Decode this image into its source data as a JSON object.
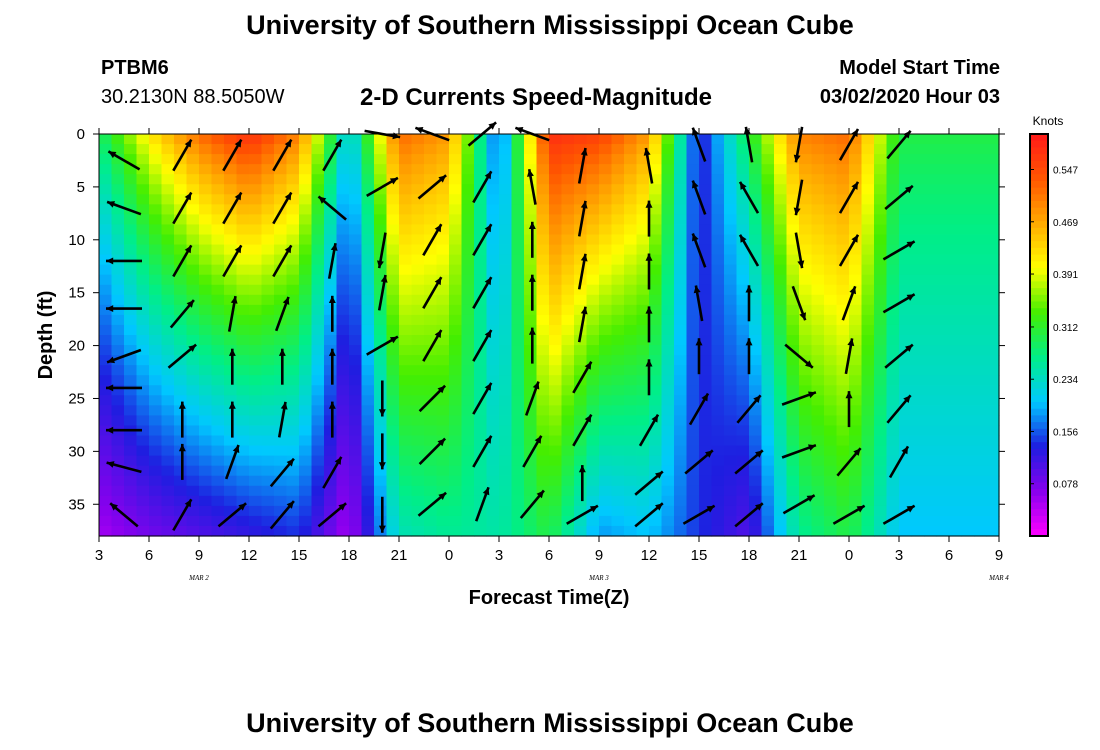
{
  "header": {
    "title": "University of Southern Mississippi Ocean Cube",
    "station_id": "PTBM6",
    "station_coords": "30.2130N 88.5050W",
    "chart_title": "2-D Currents Speed-Magnitude",
    "start_label": "Model Start Time",
    "start_value": "03/02/2020 Hour 03"
  },
  "footer": {
    "title": "University of Southern Mississippi Ocean Cube"
  },
  "colors": {
    "scale": [
      "#ff00ff",
      "#8800ee",
      "#1e1ee0",
      "#00c8ff",
      "#00ee88",
      "#44ee00",
      "#ffff00",
      "#ffaa00",
      "#ff5500",
      "#ff1a1a"
    ],
    "arrow": "#000000",
    "axis": "#000000"
  },
  "chart_data": {
    "type": "heatmap",
    "title": "2-D Currents Speed-Magnitude",
    "xlabel": "Forecast Time(Z)",
    "ylabel": "Depth (ft)",
    "x_tick_labels": [
      "3",
      "6",
      "9",
      "12",
      "15",
      "18",
      "21",
      "0",
      "3",
      "6",
      "9",
      "12",
      "15",
      "18",
      "21",
      "0",
      "3",
      "6",
      "9"
    ],
    "x_range_hours": [
      0,
      54
    ],
    "date_labels": [
      {
        "label": "MAR 2",
        "hour": 9
      },
      {
        "label": "MAR 3",
        "hour": 33
      },
      {
        "label": "MAR 4",
        "hour": 57
      }
    ],
    "y_ticks": [
      0,
      5,
      10,
      15,
      20,
      25,
      30,
      35
    ],
    "y_range": [
      0,
      38
    ],
    "y_inverted": true,
    "colorbar": {
      "title": "Knots",
      "labels": [
        "0.547",
        "0.469",
        "0.391",
        "0.312",
        "0.234",
        "0.156",
        "0.078"
      ],
      "range": [
        0,
        0.6
      ]
    },
    "speed_bands": [
      {
        "hour": 0,
        "surface": 0.28,
        "bottom": 0.05
      },
      {
        "hour": 3,
        "surface": 0.42,
        "bottom": 0.08
      },
      {
        "hour": 6,
        "surface": 0.52,
        "bottom": 0.1
      },
      {
        "hour": 9,
        "surface": 0.58,
        "bottom": 0.12
      },
      {
        "hour": 12,
        "surface": 0.5,
        "bottom": 0.14
      },
      {
        "hour": 15,
        "surface": 0.2,
        "bottom": 0.05
      },
      {
        "hour": 18,
        "surface": 0.52,
        "bottom": 0.24
      },
      {
        "hour": 21,
        "surface": 0.48,
        "bottom": 0.26
      },
      {
        "hour": 24,
        "surface": 0.14,
        "bottom": 0.25
      },
      {
        "hour": 27,
        "surface": 0.58,
        "bottom": 0.3
      },
      {
        "hour": 30,
        "surface": 0.56,
        "bottom": 0.18
      },
      {
        "hour": 33,
        "surface": 0.48,
        "bottom": 0.2
      },
      {
        "hour": 36,
        "surface": 0.12,
        "bottom": 0.14
      },
      {
        "hour": 39,
        "surface": 0.3,
        "bottom": 0.1
      },
      {
        "hour": 42,
        "surface": 0.5,
        "bottom": 0.26
      },
      {
        "hour": 45,
        "surface": 0.52,
        "bottom": 0.3
      },
      {
        "hour": 48,
        "surface": 0.3,
        "bottom": 0.2
      }
    ],
    "vectors": [
      {
        "hour": 1.5,
        "depth": 2.5,
        "angle": -150
      },
      {
        "hour": 1.5,
        "depth": 7,
        "angle": -160
      },
      {
        "hour": 1.5,
        "depth": 12,
        "angle": 180
      },
      {
        "hour": 1.5,
        "depth": 16.5,
        "angle": 180
      },
      {
        "hour": 1.5,
        "depth": 21,
        "angle": 160
      },
      {
        "hour": 1.5,
        "depth": 24,
        "angle": 180
      },
      {
        "hour": 1.5,
        "depth": 28,
        "angle": 180
      },
      {
        "hour": 1.5,
        "depth": 31.5,
        "angle": -165
      },
      {
        "hour": 1.5,
        "depth": 36,
        "angle": -140
      },
      {
        "hour": 5,
        "depth": 2,
        "angle": -60
      },
      {
        "hour": 5,
        "depth": 7,
        "angle": -60
      },
      {
        "hour": 5,
        "depth": 12,
        "angle": -60
      },
      {
        "hour": 5,
        "depth": 17,
        "angle": -50
      },
      {
        "hour": 5,
        "depth": 21,
        "angle": -40
      },
      {
        "hour": 5,
        "depth": 27,
        "angle": -90
      },
      {
        "hour": 5,
        "depth": 31,
        "angle": -90
      },
      {
        "hour": 5,
        "depth": 36,
        "angle": -60
      },
      {
        "hour": 8,
        "depth": 2,
        "angle": -60
      },
      {
        "hour": 8,
        "depth": 7,
        "angle": -60
      },
      {
        "hour": 8,
        "depth": 12,
        "angle": -60
      },
      {
        "hour": 8,
        "depth": 17,
        "angle": -80
      },
      {
        "hour": 8,
        "depth": 22,
        "angle": -90
      },
      {
        "hour": 8,
        "depth": 27,
        "angle": -90
      },
      {
        "hour": 8,
        "depth": 31,
        "angle": -70
      },
      {
        "hour": 8,
        "depth": 36,
        "angle": -40
      },
      {
        "hour": 11,
        "depth": 2,
        "angle": -60
      },
      {
        "hour": 11,
        "depth": 7,
        "angle": -60
      },
      {
        "hour": 11,
        "depth": 12,
        "angle": -60
      },
      {
        "hour": 11,
        "depth": 17,
        "angle": -70
      },
      {
        "hour": 11,
        "depth": 22,
        "angle": -90
      },
      {
        "hour": 11,
        "depth": 27,
        "angle": -80
      },
      {
        "hour": 11,
        "depth": 32,
        "angle": -50
      },
      {
        "hour": 11,
        "depth": 36,
        "angle": -50
      },
      {
        "hour": 14,
        "depth": 2,
        "angle": -60
      },
      {
        "hour": 14,
        "depth": 7,
        "angle": -140
      },
      {
        "hour": 14,
        "depth": 12,
        "angle": -80
      },
      {
        "hour": 14,
        "depth": 17,
        "angle": -90
      },
      {
        "hour": 14,
        "depth": 22,
        "angle": -90
      },
      {
        "hour": 14,
        "depth": 27,
        "angle": -90
      },
      {
        "hour": 14,
        "depth": 32,
        "angle": -60
      },
      {
        "hour": 14,
        "depth": 36,
        "angle": -40
      },
      {
        "hour": 17,
        "depth": 0,
        "angle": 10
      },
      {
        "hour": 17,
        "depth": 5,
        "angle": -30
      },
      {
        "hour": 17,
        "depth": 11,
        "angle": 100
      },
      {
        "hour": 17,
        "depth": 15,
        "angle": -80
      },
      {
        "hour": 17,
        "depth": 20,
        "angle": -30
      },
      {
        "hour": 17,
        "depth": 25,
        "angle": 90
      },
      {
        "hour": 17,
        "depth": 30,
        "angle": 90
      },
      {
        "hour": 17,
        "depth": 36,
        "angle": 90
      },
      {
        "hour": 20,
        "depth": 0,
        "angle": -160
      },
      {
        "hour": 20,
        "depth": 5,
        "angle": -40
      },
      {
        "hour": 20,
        "depth": 10,
        "angle": -60
      },
      {
        "hour": 20,
        "depth": 15,
        "angle": -60
      },
      {
        "hour": 20,
        "depth": 20,
        "angle": -60
      },
      {
        "hour": 20,
        "depth": 25,
        "angle": -45
      },
      {
        "hour": 20,
        "depth": 30,
        "angle": -45
      },
      {
        "hour": 20,
        "depth": 35,
        "angle": -40
      },
      {
        "hour": 23,
        "depth": 0,
        "angle": -40
      },
      {
        "hour": 23,
        "depth": 5,
        "angle": -60
      },
      {
        "hour": 23,
        "depth": 10,
        "angle": -60
      },
      {
        "hour": 23,
        "depth": 15,
        "angle": -60
      },
      {
        "hour": 23,
        "depth": 20,
        "angle": -60
      },
      {
        "hour": 23,
        "depth": 25,
        "angle": -60
      },
      {
        "hour": 23,
        "depth": 30,
        "angle": -60
      },
      {
        "hour": 23,
        "depth": 35,
        "angle": -70
      },
      {
        "hour": 26,
        "depth": 0,
        "angle": -160
      },
      {
        "hour": 26,
        "depth": 5,
        "angle": -100
      },
      {
        "hour": 26,
        "depth": 10,
        "angle": -90
      },
      {
        "hour": 26,
        "depth": 15,
        "angle": -90
      },
      {
        "hour": 26,
        "depth": 20,
        "angle": -90
      },
      {
        "hour": 26,
        "depth": 25,
        "angle": -70
      },
      {
        "hour": 26,
        "depth": 30,
        "angle": -60
      },
      {
        "hour": 26,
        "depth": 35,
        "angle": -50
      },
      {
        "hour": 29,
        "depth": 3,
        "angle": -80
      },
      {
        "hour": 29,
        "depth": 8,
        "angle": -80
      },
      {
        "hour": 29,
        "depth": 13,
        "angle": -80
      },
      {
        "hour": 29,
        "depth": 18,
        "angle": -80
      },
      {
        "hour": 29,
        "depth": 23,
        "angle": -60
      },
      {
        "hour": 29,
        "depth": 28,
        "angle": -60
      },
      {
        "hour": 29,
        "depth": 33,
        "angle": -90
      },
      {
        "hour": 29,
        "depth": 36,
        "angle": -30
      },
      {
        "hour": 33,
        "depth": 3,
        "angle": -100
      },
      {
        "hour": 33,
        "depth": 8,
        "angle": -90
      },
      {
        "hour": 33,
        "depth": 13,
        "angle": -90
      },
      {
        "hour": 33,
        "depth": 18,
        "angle": -90
      },
      {
        "hour": 33,
        "depth": 23,
        "angle": -90
      },
      {
        "hour": 33,
        "depth": 28,
        "angle": -60
      },
      {
        "hour": 33,
        "depth": 33,
        "angle": -40
      },
      {
        "hour": 33,
        "depth": 36,
        "angle": -40
      },
      {
        "hour": 36,
        "depth": 1,
        "angle": -110
      },
      {
        "hour": 36,
        "depth": 6,
        "angle": -110
      },
      {
        "hour": 36,
        "depth": 11,
        "angle": -110
      },
      {
        "hour": 36,
        "depth": 16,
        "angle": -100
      },
      {
        "hour": 36,
        "depth": 21,
        "angle": -90
      },
      {
        "hour": 36,
        "depth": 26,
        "angle": -60
      },
      {
        "hour": 36,
        "depth": 31,
        "angle": -40
      },
      {
        "hour": 36,
        "depth": 36,
        "angle": -30
      },
      {
        "hour": 39,
        "depth": 1,
        "angle": -100
      },
      {
        "hour": 39,
        "depth": 6,
        "angle": -120
      },
      {
        "hour": 39,
        "depth": 11,
        "angle": -120
      },
      {
        "hour": 39,
        "depth": 16,
        "angle": -90
      },
      {
        "hour": 39,
        "depth": 21,
        "angle": -90
      },
      {
        "hour": 39,
        "depth": 26,
        "angle": -50
      },
      {
        "hour": 39,
        "depth": 31,
        "angle": -40
      },
      {
        "hour": 39,
        "depth": 36,
        "angle": -40
      },
      {
        "hour": 42,
        "depth": 1,
        "angle": 100
      },
      {
        "hour": 42,
        "depth": 6,
        "angle": 100
      },
      {
        "hour": 42,
        "depth": 11,
        "angle": 80
      },
      {
        "hour": 42,
        "depth": 16,
        "angle": 70
      },
      {
        "hour": 42,
        "depth": 21,
        "angle": 40
      },
      {
        "hour": 42,
        "depth": 25,
        "angle": -20
      },
      {
        "hour": 42,
        "depth": 30,
        "angle": -20
      },
      {
        "hour": 42,
        "depth": 35,
        "angle": -30
      },
      {
        "hour": 45,
        "depth": 1,
        "angle": -60
      },
      {
        "hour": 45,
        "depth": 6,
        "angle": -60
      },
      {
        "hour": 45,
        "depth": 11,
        "angle": -60
      },
      {
        "hour": 45,
        "depth": 16,
        "angle": -70
      },
      {
        "hour": 45,
        "depth": 21,
        "angle": -80
      },
      {
        "hour": 45,
        "depth": 26,
        "angle": -90
      },
      {
        "hour": 45,
        "depth": 31,
        "angle": -50
      },
      {
        "hour": 45,
        "depth": 36,
        "angle": -30
      },
      {
        "hour": 48,
        "depth": 1,
        "angle": -50
      },
      {
        "hour": 48,
        "depth": 6,
        "angle": -40
      },
      {
        "hour": 48,
        "depth": 11,
        "angle": -30
      },
      {
        "hour": 48,
        "depth": 16,
        "angle": -30
      },
      {
        "hour": 48,
        "depth": 21,
        "angle": -40
      },
      {
        "hour": 48,
        "depth": 26,
        "angle": -50
      },
      {
        "hour": 48,
        "depth": 31,
        "angle": -60
      },
      {
        "hour": 48,
        "depth": 36,
        "angle": -30
      }
    ]
  }
}
